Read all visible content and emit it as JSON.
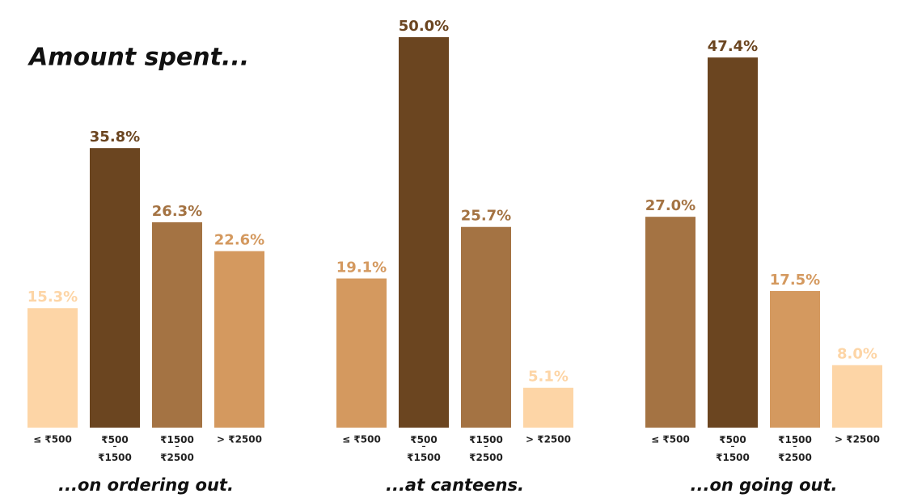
{
  "title": "Amount spent...",
  "chart_data": [
    {
      "type": "bar",
      "title": "...on ordering out.",
      "categories": [
        "≤ ₹500",
        "₹500 – ₹1500",
        "₹1500 – ₹2500",
        "> ₹2500"
      ],
      "values": [
        15.3,
        35.8,
        26.3,
        22.6
      ],
      "value_labels": [
        "15.3%",
        "35.8%",
        "26.3%",
        "22.6%"
      ],
      "colors": [
        "#fdd5a6",
        "#6b4520",
        "#a47343",
        "#d4995f"
      ],
      "ylim": [
        0,
        50
      ]
    },
    {
      "type": "bar",
      "title": "...at canteens.",
      "categories": [
        "≤ ₹500",
        "₹500 – ₹1500",
        "₹1500 – ₹2500",
        "> ₹2500"
      ],
      "values": [
        19.1,
        50.0,
        25.7,
        5.1
      ],
      "value_labels": [
        "19.1%",
        "50.0%",
        "25.7%",
        "5.1%"
      ],
      "colors": [
        "#d4995f",
        "#6b4520",
        "#a47343",
        "#fdd5a6"
      ],
      "ylim": [
        0,
        50
      ]
    },
    {
      "type": "bar",
      "title": "...on going out.",
      "categories": [
        "≤ ₹500",
        "₹500 – ₹1500",
        "₹1500 – ₹2500",
        "> ₹2500"
      ],
      "values": [
        27.0,
        47.4,
        17.5,
        8.0
      ],
      "value_labels": [
        "27.0%",
        "47.4%",
        "17.5%",
        "8.0%"
      ],
      "colors": [
        "#a47343",
        "#6b4520",
        "#d4995f",
        "#fdd5a6"
      ],
      "ylim": [
        0,
        50
      ]
    }
  ]
}
